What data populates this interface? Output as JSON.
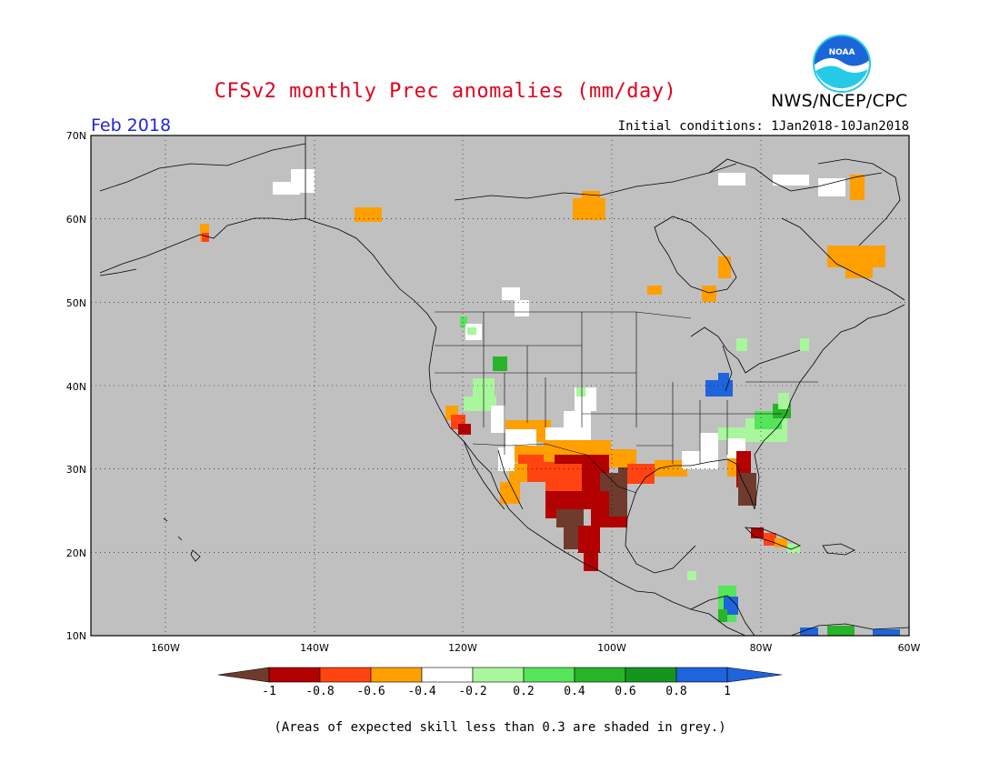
{
  "title": "CFSv2 monthly Prec anomalies (mm/day)",
  "agency": "NWS/NCEP/CPC",
  "logo_text": "NOAA",
  "period": "Feb 2018",
  "initial_conditions": "Initial conditions: 1Jan2018-10Jan2018",
  "footnote": "(Areas of expected skill less than 0.3 are shaded in grey.)",
  "map": {
    "lon_range": [
      -170,
      -60
    ],
    "lat_range": [
      10,
      70
    ],
    "background_color": "#c0c0c0",
    "lat_labels": [
      "70N",
      "60N",
      "50N",
      "40N",
      "30N",
      "20N",
      "10N"
    ],
    "lon_labels": [
      "160W",
      "140W",
      "120W",
      "100W",
      "80W",
      "60W"
    ]
  },
  "legend": {
    "tick_labels": [
      "-1",
      "-0.8",
      "-0.6",
      "-0.4",
      "-0.2",
      "0.2",
      "0.4",
      "0.6",
      "0.8",
      "1"
    ],
    "colors": [
      "#6e3b2d",
      "#b30000",
      "#ff4411",
      "#ff9f00",
      "#ffffff",
      "#a8f79c",
      "#55e45a",
      "#28b428",
      "#14961e",
      "#1e64dc"
    ]
  }
}
